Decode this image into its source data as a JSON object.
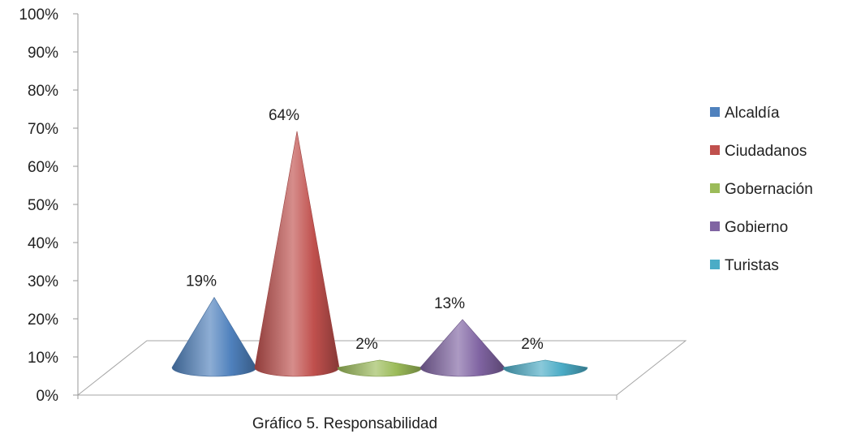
{
  "chart_data": {
    "type": "bar",
    "bar_shape": "3d-cone",
    "categories": [
      "Alcaldía",
      "Ciudadanos",
      "Gobernación",
      "Gobierno",
      "Turistas"
    ],
    "values": [
      19,
      64,
      2,
      13,
      2
    ],
    "value_labels": [
      "19%",
      "64%",
      "2%",
      "13%",
      "2%"
    ],
    "colors": [
      "#4F81BD",
      "#C0504D",
      "#9BBB59",
      "#8064A2",
      "#4BACC6"
    ],
    "ylim": [
      0,
      100
    ],
    "y_ticks": [
      "0%",
      "10%",
      "20%",
      "30%",
      "40%",
      "50%",
      "60%",
      "70%",
      "80%",
      "90%",
      "100%"
    ],
    "legend_position": "right",
    "caption": "Gráfico 5. Responsabilidad",
    "grid": false
  }
}
